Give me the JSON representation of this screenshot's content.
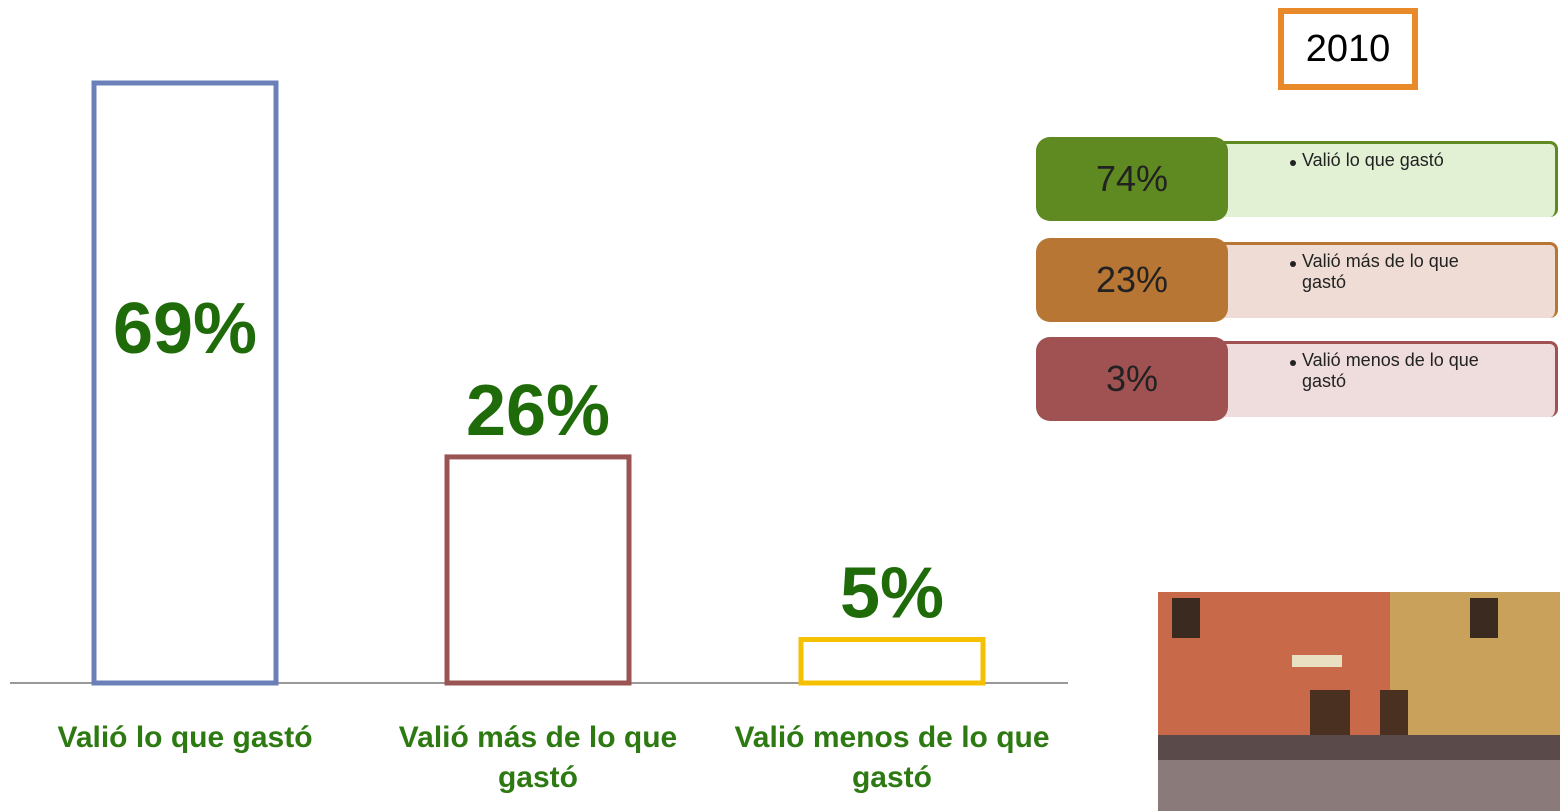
{
  "chart_data": {
    "type": "bar",
    "categories": [
      "Valió lo que gastó",
      "Valió más de lo que gastó",
      "Valió menos de lo que gastó"
    ],
    "values": [
      69,
      26,
      5
    ],
    "value_labels": [
      "69%",
      "26%",
      "5%"
    ],
    "colors": [
      "#6b80b8",
      "#9a5454",
      "#f5c000"
    ]
  },
  "panel": {
    "year": "2010",
    "items": [
      {
        "percent": "74%",
        "label": "Valió lo que gastó",
        "color": "#5f8a22",
        "light": "#e2f0d4"
      },
      {
        "percent": "23%",
        "label": "Valió más de lo que gastó",
        "color": "#b87634",
        "light": "#efdcd4"
      },
      {
        "percent": "3%",
        "label": "Valió menos de lo que gastó",
        "color": "#a05252",
        "light": "#efdcdc"
      }
    ]
  }
}
